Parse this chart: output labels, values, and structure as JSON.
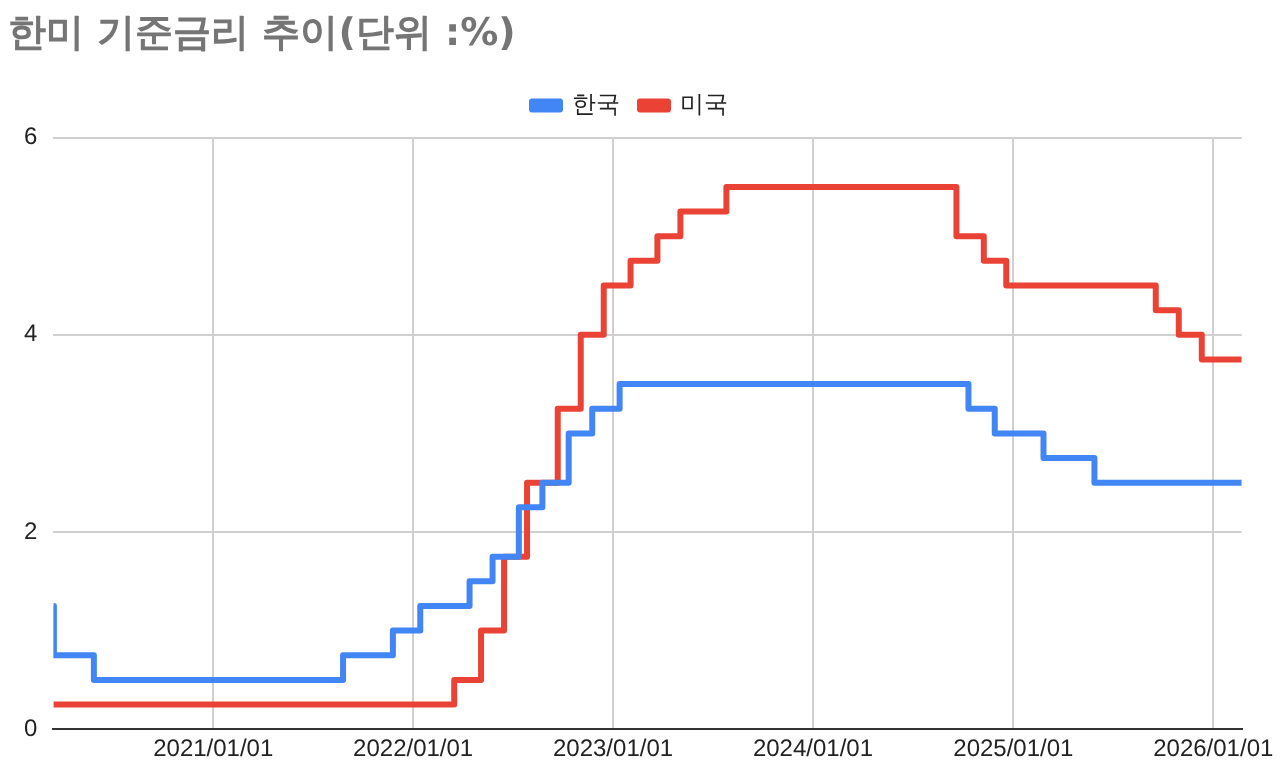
{
  "chart_data": {
    "type": "step",
    "title": "한미 기준금리 추이(단위 :%)",
    "xlim": [
      "2020-03-15",
      "2026-02-22"
    ],
    "xticks": [
      {
        "value": "2021-01-01",
        "label": "2021/01/01"
      },
      {
        "value": "2022-01-01",
        "label": "2022/01/01"
      },
      {
        "value": "2023-01-01",
        "label": "2023/01/01"
      },
      {
        "value": "2024-01-01",
        "label": "2024/01/01"
      },
      {
        "value": "2025-01-01",
        "label": "2025/01/01"
      },
      {
        "value": "2026-01-01",
        "label": "2026/01/01"
      }
    ],
    "ylim": [
      0,
      6
    ],
    "yticks": [
      0,
      2,
      4,
      6
    ],
    "grid": true,
    "legend": "top",
    "marker": "none",
    "line_style": "solid",
    "series": [
      {
        "name": "한국",
        "color": "#4285f4",
        "x": [
          "2020-03-15",
          "2020-03-16",
          "2020-05-28",
          "2021-08-26",
          "2021-11-25",
          "2022-01-14",
          "2022-04-14",
          "2022-05-26",
          "2022-07-13",
          "2022-08-25",
          "2022-10-12",
          "2022-11-24",
          "2023-01-13",
          "2024-10-11",
          "2024-11-28",
          "2025-02-25",
          "2025-05-29",
          "2026-02-22"
        ],
        "values": [
          1.25,
          0.75,
          0.5,
          0.75,
          1.0,
          1.25,
          1.5,
          1.75,
          2.25,
          2.5,
          3.0,
          3.25,
          3.5,
          3.25,
          3.0,
          2.75,
          2.5,
          2.5
        ]
      },
      {
        "name": "미국",
        "color": "#ea4335",
        "x": [
          "2020-03-15",
          "2022-03-17",
          "2022-05-05",
          "2022-06-16",
          "2022-07-28",
          "2022-09-22",
          "2022-11-03",
          "2022-12-15",
          "2023-02-02",
          "2023-03-23",
          "2023-05-04",
          "2023-07-27",
          "2024-09-19",
          "2024-11-08",
          "2024-12-19",
          "2025-09-18",
          "2025-10-30",
          "2025-12-11",
          "2026-02-22"
        ],
        "values": [
          0.25,
          0.5,
          1.0,
          1.75,
          2.5,
          3.25,
          4.0,
          4.5,
          4.75,
          5.0,
          5.25,
          5.5,
          5.0,
          4.75,
          4.5,
          4.25,
          4.0,
          3.75,
          3.75
        ]
      }
    ]
  }
}
